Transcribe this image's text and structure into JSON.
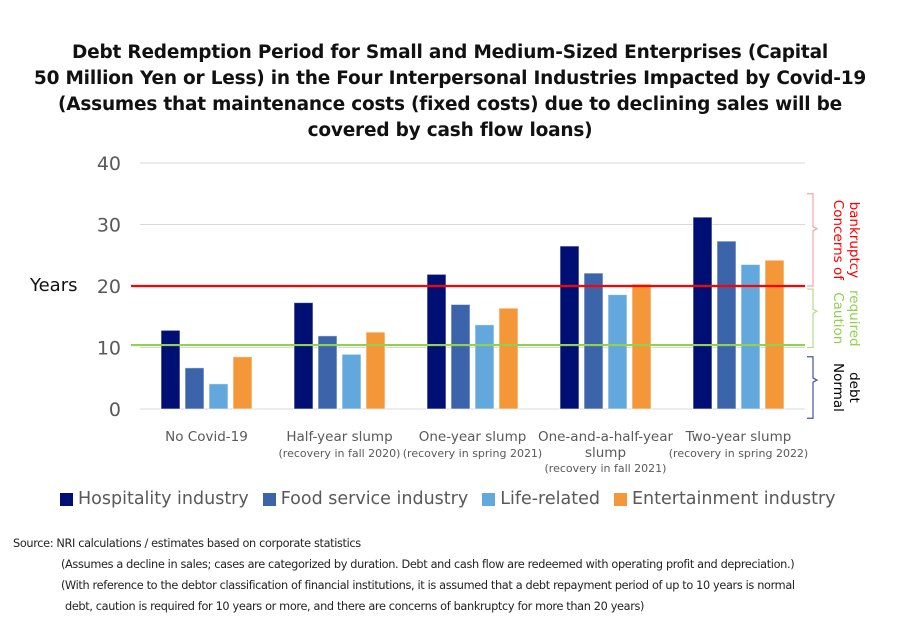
{
  "chart_data": {
    "type": "bar",
    "title_lines": [
      "Debt Redemption Period for Small and Medium-Sized Enterprises (Capital",
      "50 Million Yen or Less) in the Four Interpersonal Industries Impacted by Covid-19",
      "(Assumes that maintenance costs (fixed costs) due to declining sales will be",
      "covered by cash flow loans)"
    ],
    "ylabel": "Years",
    "ylim": [
      0,
      40
    ],
    "yticks": [
      "0",
      "10",
      "20",
      "30",
      "40"
    ],
    "grid": true,
    "categories": [
      {
        "label": "No Covid-19",
        "sublabel": []
      },
      {
        "label": "Half-year slump",
        "sublabel": [
          "(recovery in fall 2020)"
        ]
      },
      {
        "label": "One-year slump",
        "sublabel": [
          "(recovery in spring 2021)"
        ]
      },
      {
        "label": "One-and-a-half-year",
        "sublabel": [
          "slump",
          "(recovery in fall 2021)"
        ]
      },
      {
        "label": "Two-year slump",
        "sublabel": [
          "(recovery in spring 2022)"
        ]
      }
    ],
    "series": [
      {
        "name": "Hospitality industry",
        "color": "#000f73",
        "values": [
          12.8,
          17.3,
          21.9,
          26.5,
          31.2
        ]
      },
      {
        "name": "Food service industry",
        "color": "#3c64aa",
        "values": [
          6.7,
          11.9,
          17.0,
          22.1,
          27.3
        ]
      },
      {
        "name": "Life-related",
        "color": "#63a8dc",
        "values": [
          4.1,
          8.9,
          13.7,
          18.6,
          23.5
        ]
      },
      {
        "name": "Entertainment industry",
        "color": "#f49739",
        "values": [
          8.5,
          12.5,
          16.4,
          20.3,
          24.2
        ]
      }
    ],
    "reference_lines": [
      {
        "name": "bankruptcy-threshold",
        "value": 20,
        "color": "#ff0000"
      },
      {
        "name": "caution-threshold",
        "value": 10.4,
        "color": "#92d050"
      }
    ],
    "zones": [
      {
        "name": "bankruptcy",
        "lines": [
          "Concerns of",
          "bankruptcy"
        ],
        "from": 20,
        "to": 35,
        "color": "#ff0000",
        "brace_color": "#f4a6a6"
      },
      {
        "name": "caution",
        "lines": [
          "Caution",
          "required"
        ],
        "from": 10,
        "to": 19.5,
        "color": "#92d050",
        "brace_color": "#b5dc8c"
      },
      {
        "name": "normal",
        "lines": [
          "Normal",
          "debt"
        ],
        "from": -1.5,
        "to": 8.5,
        "color": "#000000",
        "brace_color": "#44549c"
      }
    ],
    "legend_position": "bottom"
  },
  "notes": {
    "source": "Source: NRI calculations / estimates based on corporate statistics",
    "note1": "(Assumes a decline in sales; cases are categorized by duration. Debt and cash flow are redeemed with operating profit and depreciation.)",
    "note2a": "(With reference to the debtor classification of financial institutions, it is assumed that a debt repayment period of up to 10 years is normal",
    "note2b": "debt, caution is required for 10 years or more, and there are concerns of bankruptcy for more than 20 years)"
  }
}
